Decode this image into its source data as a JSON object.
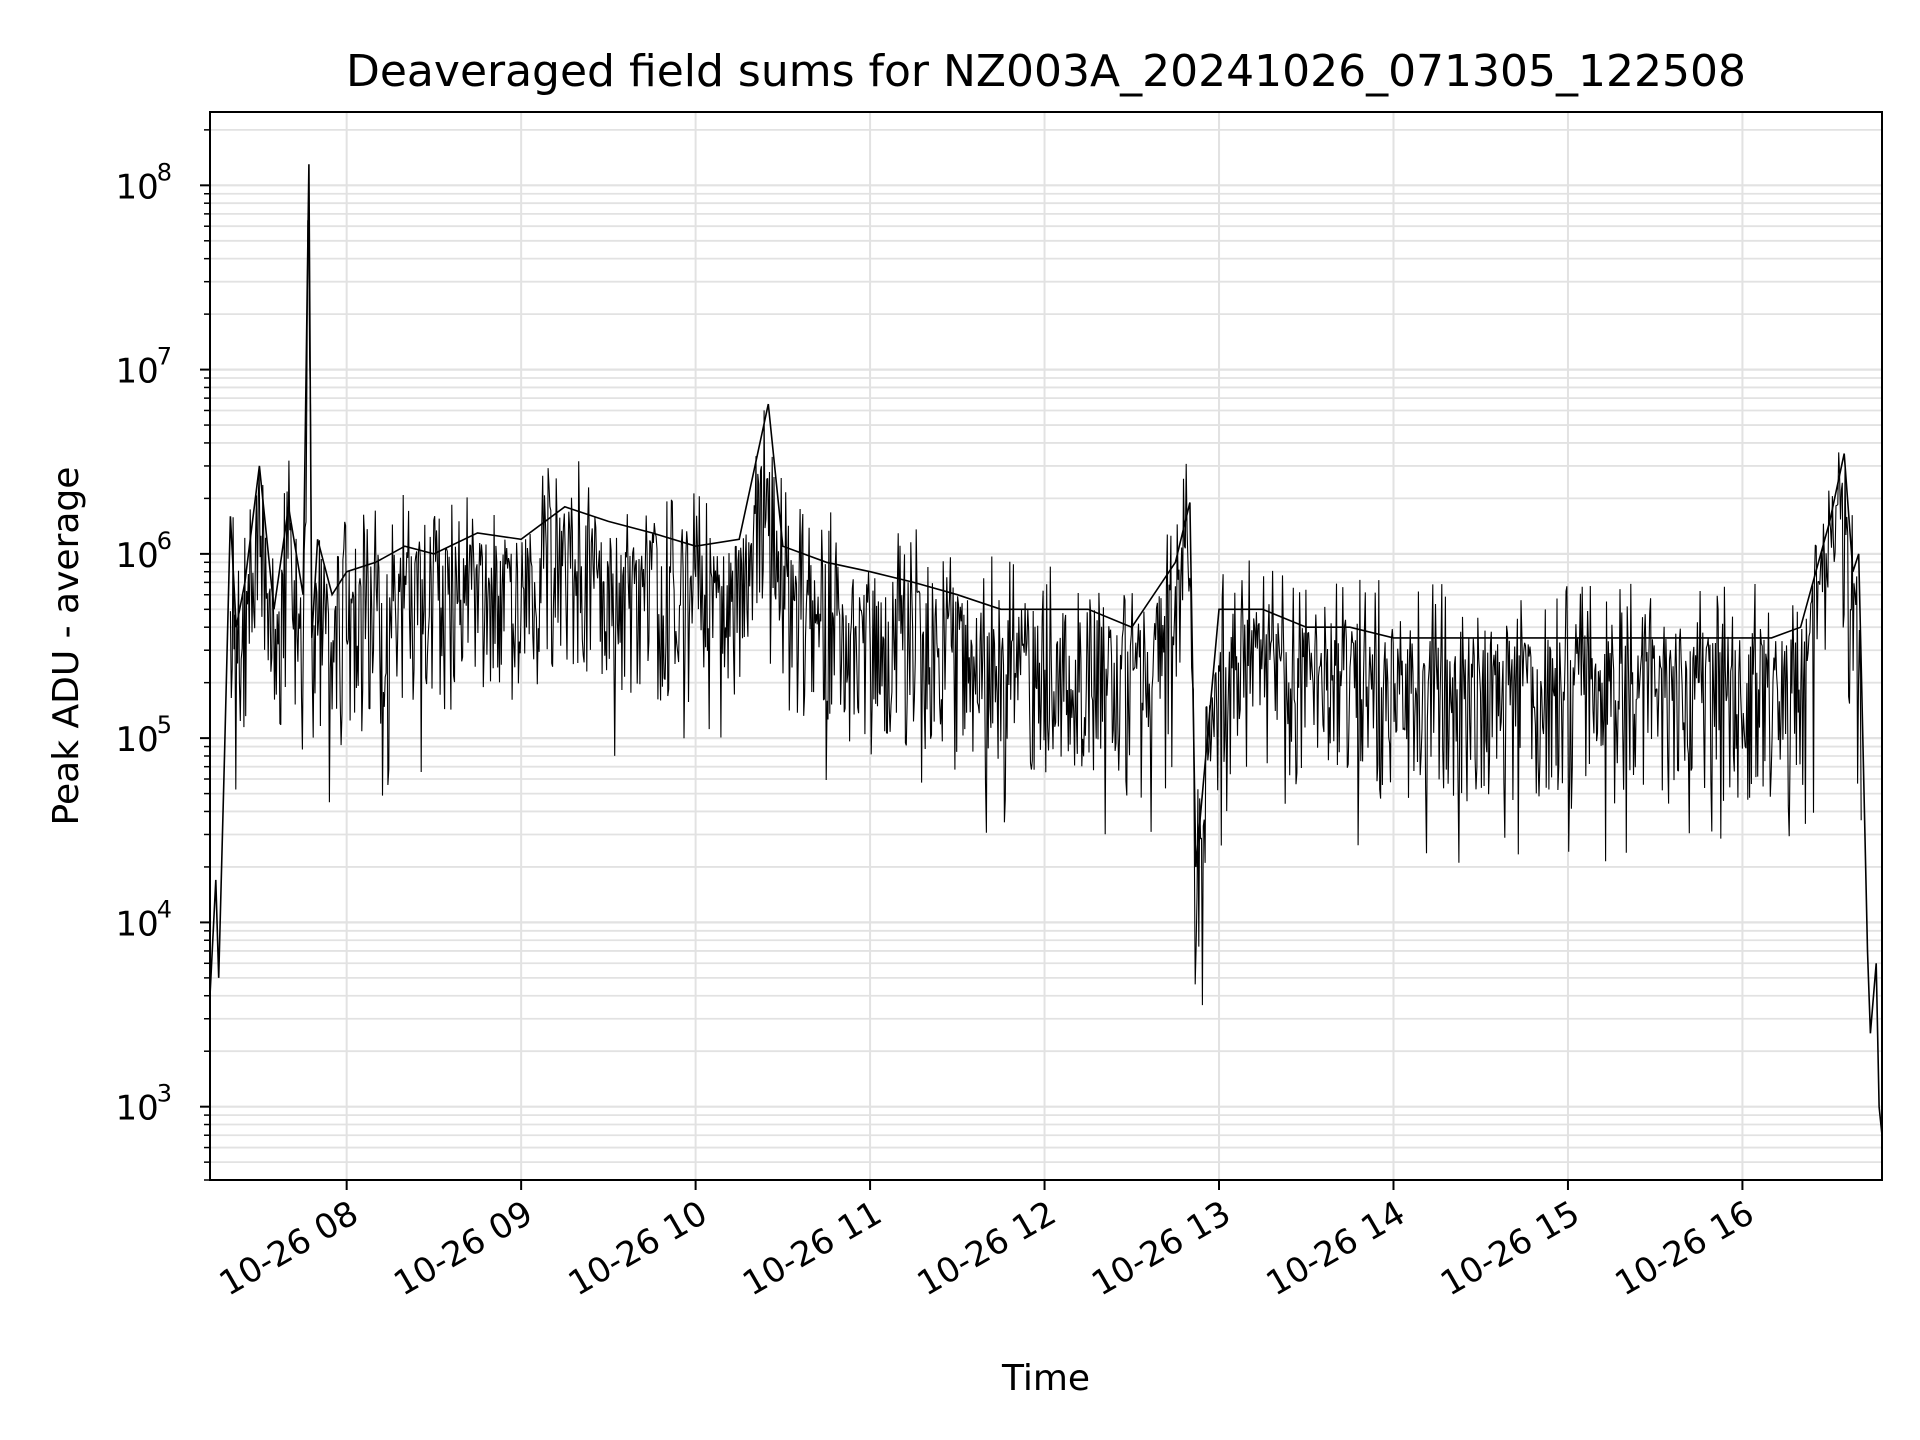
{
  "chart_data": {
    "type": "line",
    "title": "Deaveraged field sums for NZ003A_20241026_071305_122508",
    "xlabel": "Time",
    "ylabel": "Peak ADU - average",
    "y_scale": "log",
    "grid": "major and minor",
    "xlim": [
      "2024-10-26 07:13",
      "2024-10-26 16:48"
    ],
    "ylim": [
      400,
      250000000
    ],
    "x_ticks": [
      "10-26 08",
      "10-26 09",
      "10-26 10",
      "10-26 11",
      "10-26 12",
      "10-26 13",
      "10-26 14",
      "10-26 15",
      "10-26 16"
    ],
    "y_ticks": [
      {
        "base": "10",
        "exp": "3",
        "value": 1000
      },
      {
        "base": "10",
        "exp": "4",
        "value": 10000
      },
      {
        "base": "10",
        "exp": "5",
        "value": 100000
      },
      {
        "base": "10",
        "exp": "6",
        "value": 1000000
      },
      {
        "base": "10",
        "exp": "7",
        "value": 10000000
      },
      {
        "base": "10",
        "exp": "8",
        "value": 100000000
      }
    ],
    "line_color": "#000000",
    "series": [
      {
        "x": [
          "2024-10-26 07:13",
          "2024-10-26 07:15",
          "2024-10-26 07:16",
          "2024-10-26 07:18",
          "2024-10-26 07:20",
          "2024-10-26 07:22",
          "2024-10-26 07:25",
          "2024-10-26 07:30",
          "2024-10-26 07:35",
          "2024-10-26 07:40",
          "2024-10-26 07:45",
          "2024-10-26 07:47",
          "2024-10-26 07:48",
          "2024-10-26 07:50",
          "2024-10-26 07:55",
          "2024-10-26 08:00",
          "2024-10-26 08:10",
          "2024-10-26 08:20",
          "2024-10-26 08:30",
          "2024-10-26 08:45",
          "2024-10-26 09:00",
          "2024-10-26 09:15",
          "2024-10-26 09:30",
          "2024-10-26 09:45",
          "2024-10-26 10:00",
          "2024-10-26 10:15",
          "2024-10-26 10:25",
          "2024-10-26 10:30",
          "2024-10-26 10:45",
          "2024-10-26 11:00",
          "2024-10-26 11:15",
          "2024-10-26 11:30",
          "2024-10-26 11:45",
          "2024-10-26 12:00",
          "2024-10-26 12:15",
          "2024-10-26 12:30",
          "2024-10-26 12:45",
          "2024-10-26 12:50",
          "2024-10-26 12:52",
          "2024-10-26 13:00",
          "2024-10-26 13:15",
          "2024-10-26 13:30",
          "2024-10-26 13:45",
          "2024-10-26 14:00",
          "2024-10-26 14:15",
          "2024-10-26 14:30",
          "2024-10-26 14:45",
          "2024-10-26 15:00",
          "2024-10-26 15:15",
          "2024-10-26 15:30",
          "2024-10-26 15:45",
          "2024-10-26 16:00",
          "2024-10-26 16:10",
          "2024-10-26 16:20",
          "2024-10-26 16:30",
          "2024-10-26 16:35",
          "2024-10-26 16:38",
          "2024-10-26 16:40",
          "2024-10-26 16:41",
          "2024-10-26 16:43",
          "2024-10-26 16:44",
          "2024-10-26 16:46",
          "2024-10-26 16:47",
          "2024-10-26 16:48"
        ],
        "y": [
          4000,
          17000,
          5000,
          80000,
          1600000,
          400000,
          700000,
          3000000,
          500000,
          1800000,
          600000,
          130000000,
          350000,
          1200000,
          600000,
          800000,
          900000,
          1100000,
          1000000,
          1300000,
          1200000,
          1800000,
          1500000,
          1300000,
          1100000,
          1200000,
          6500000,
          1100000,
          900000,
          800000,
          700000,
          600000,
          500000,
          500000,
          500000,
          400000,
          900000,
          1900000,
          20000,
          500000,
          500000,
          400000,
          400000,
          350000,
          350000,
          350000,
          350000,
          350000,
          350000,
          350000,
          350000,
          350000,
          350000,
          400000,
          1500000,
          3500000,
          800000,
          1000000,
          200000,
          7000,
          2500,
          6000,
          1000,
          700
        ]
      }
    ]
  }
}
